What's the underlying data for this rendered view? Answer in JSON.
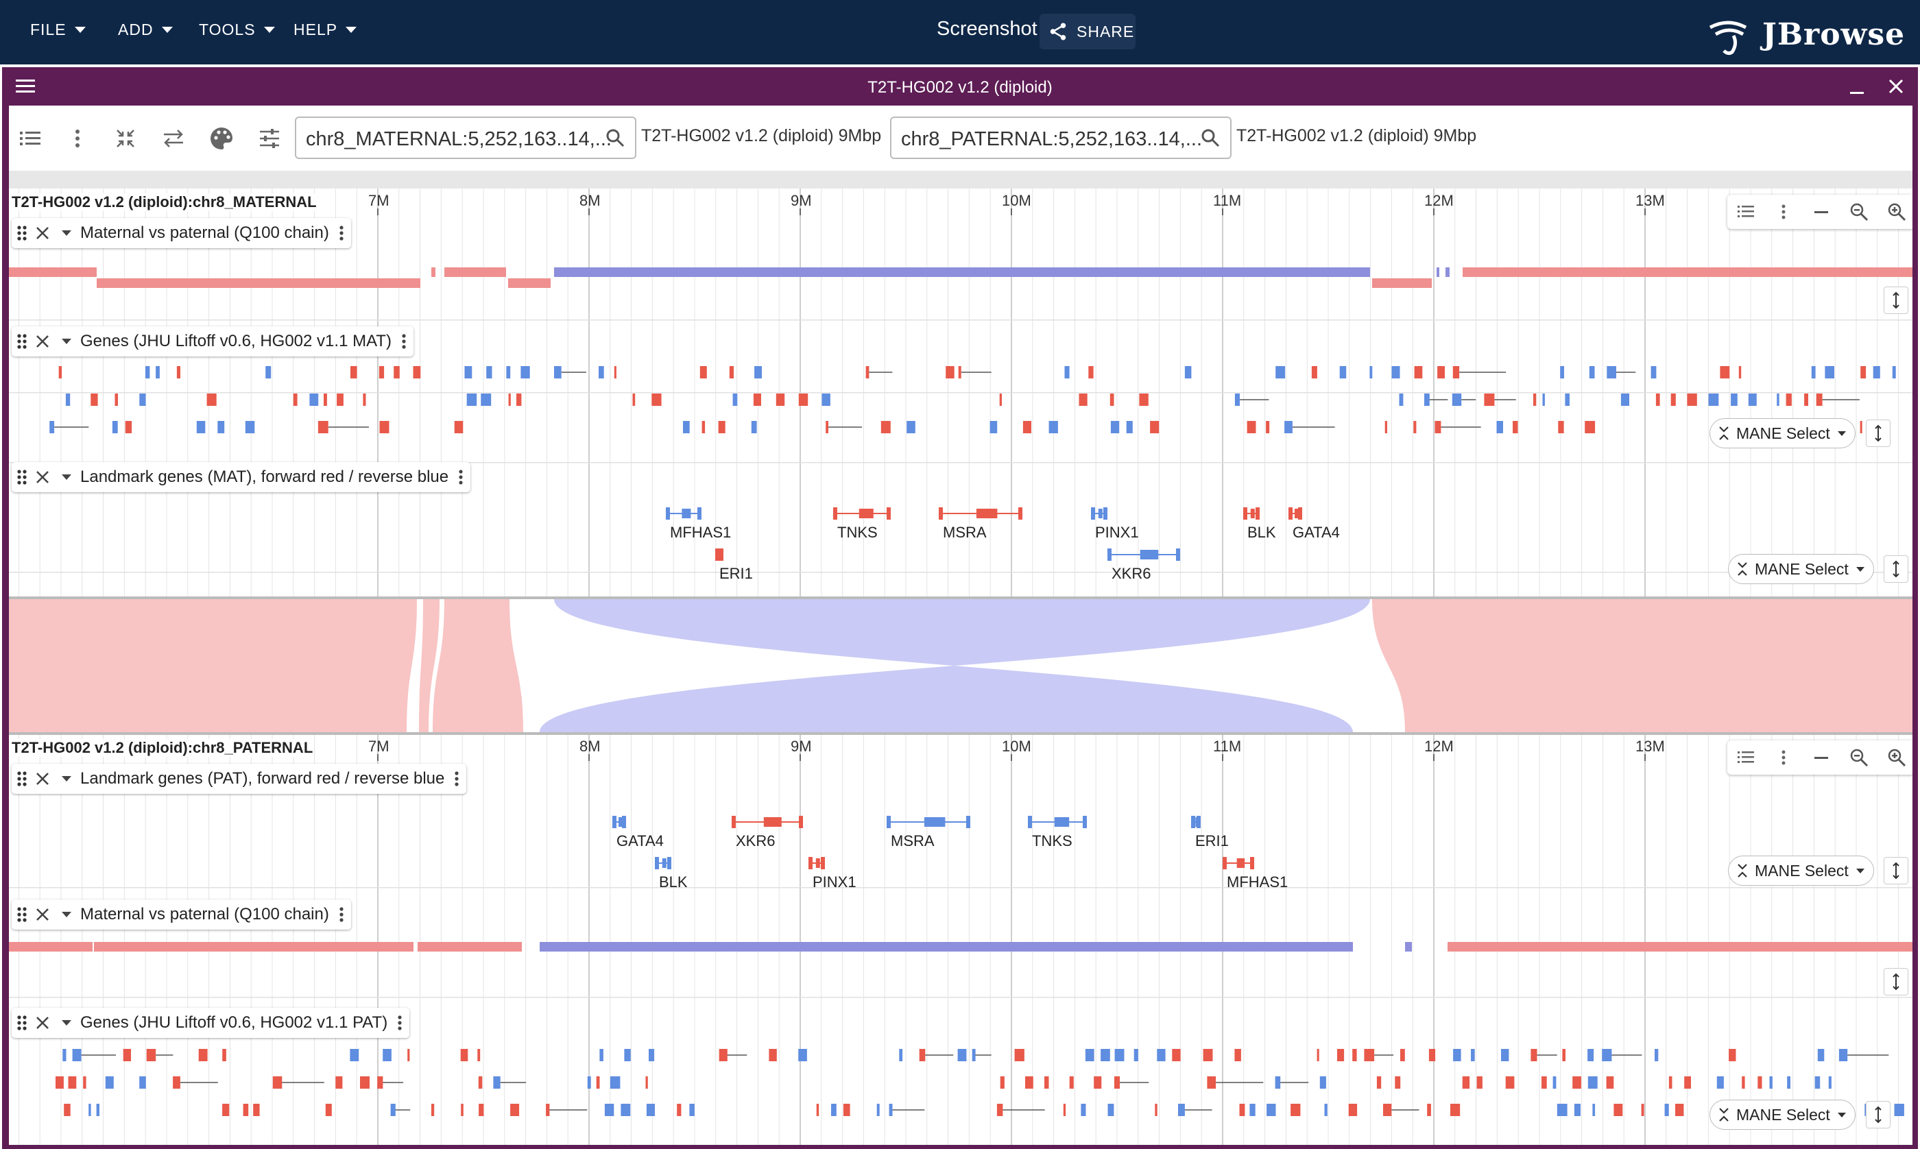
{
  "app": {
    "menus": [
      "FILE",
      "ADD",
      "TOOLS",
      "HELP"
    ],
    "session_name": "Screenshot",
    "share_label": "SHARE",
    "logo_text": "JBrowse"
  },
  "view": {
    "title": "T2T-HG002 v1.2 (diploid)",
    "toolbar_icons": [
      "track-list-icon",
      "kebab-icon",
      "squish-icon",
      "swap-icon",
      "palette-icon",
      "tune-icon"
    ],
    "top_locstring": "chr8_MATERNAL:5,252,163..14,...",
    "top_assembly_info": "T2T-HG002 v1.2 (diploid) 9Mbp",
    "bottom_locstring": "chr8_PATERNAL:5,252,163..14,...",
    "bottom_assembly_info": "T2T-HG002 v1.2 (diploid) 9Mbp"
  },
  "ruler": {
    "ticks": [
      "7M",
      "8M",
      "9M",
      "10M",
      "11M",
      "12M",
      "13M"
    ]
  },
  "maternal": {
    "region_label": "T2T-HG002 v1.2 (diploid):chr8_MATERNAL",
    "tracks": {
      "chain": {
        "name": "Maternal vs paternal (Q100 chain)"
      },
      "genes": {
        "name": "Genes (JHU Liftoff v0.6, HG002 v1.1 MAT)",
        "filter": "MANE Select"
      },
      "landmark": {
        "name": "Landmark genes (MAT), forward red / reverse blue",
        "filter": "MANE Select"
      }
    },
    "landmark_genes": [
      {
        "label": "MFHAS1",
        "strand": "reverse"
      },
      {
        "label": "ERI1",
        "strand": "forward"
      },
      {
        "label": "TNKS",
        "strand": "forward"
      },
      {
        "label": "MSRA",
        "strand": "forward"
      },
      {
        "label": "PINX1",
        "strand": "reverse"
      },
      {
        "label": "XKR6",
        "strand": "reverse"
      },
      {
        "label": "BLK",
        "strand": "forward"
      },
      {
        "label": "GATA4",
        "strand": "forward"
      }
    ]
  },
  "paternal": {
    "region_label": "T2T-HG002 v1.2 (diploid):chr8_PATERNAL",
    "tracks": {
      "landmark": {
        "name": "Landmark genes (PAT), forward red / reverse blue",
        "filter": "MANE Select"
      },
      "chain": {
        "name": "Maternal vs paternal (Q100 chain)"
      },
      "genes": {
        "name": "Genes (JHU Liftoff v0.6, HG002 v1.1 PAT)",
        "filter": "MANE Select"
      }
    },
    "landmark_genes": [
      {
        "label": "GATA4",
        "strand": "reverse"
      },
      {
        "label": "BLK",
        "strand": "reverse"
      },
      {
        "label": "XKR6",
        "strand": "forward"
      },
      {
        "label": "PINX1",
        "strand": "forward"
      },
      {
        "label": "MSRA",
        "strand": "reverse"
      },
      {
        "label": "TNKS",
        "strand": "reverse"
      },
      {
        "label": "ERI1",
        "strand": "reverse"
      },
      {
        "label": "MFHAS1",
        "strand": "forward"
      }
    ]
  },
  "colors": {
    "topbar": "#0f2747",
    "view_frame": "#5e1d55",
    "forward": "#e8594a",
    "reverse": "#5f8de0",
    "chain_same": "#ef8f8f",
    "chain_inverted": "#8d8fdc",
    "synteny_same": "#f8c4c4",
    "synteny_inverted": "#c9caf5"
  }
}
